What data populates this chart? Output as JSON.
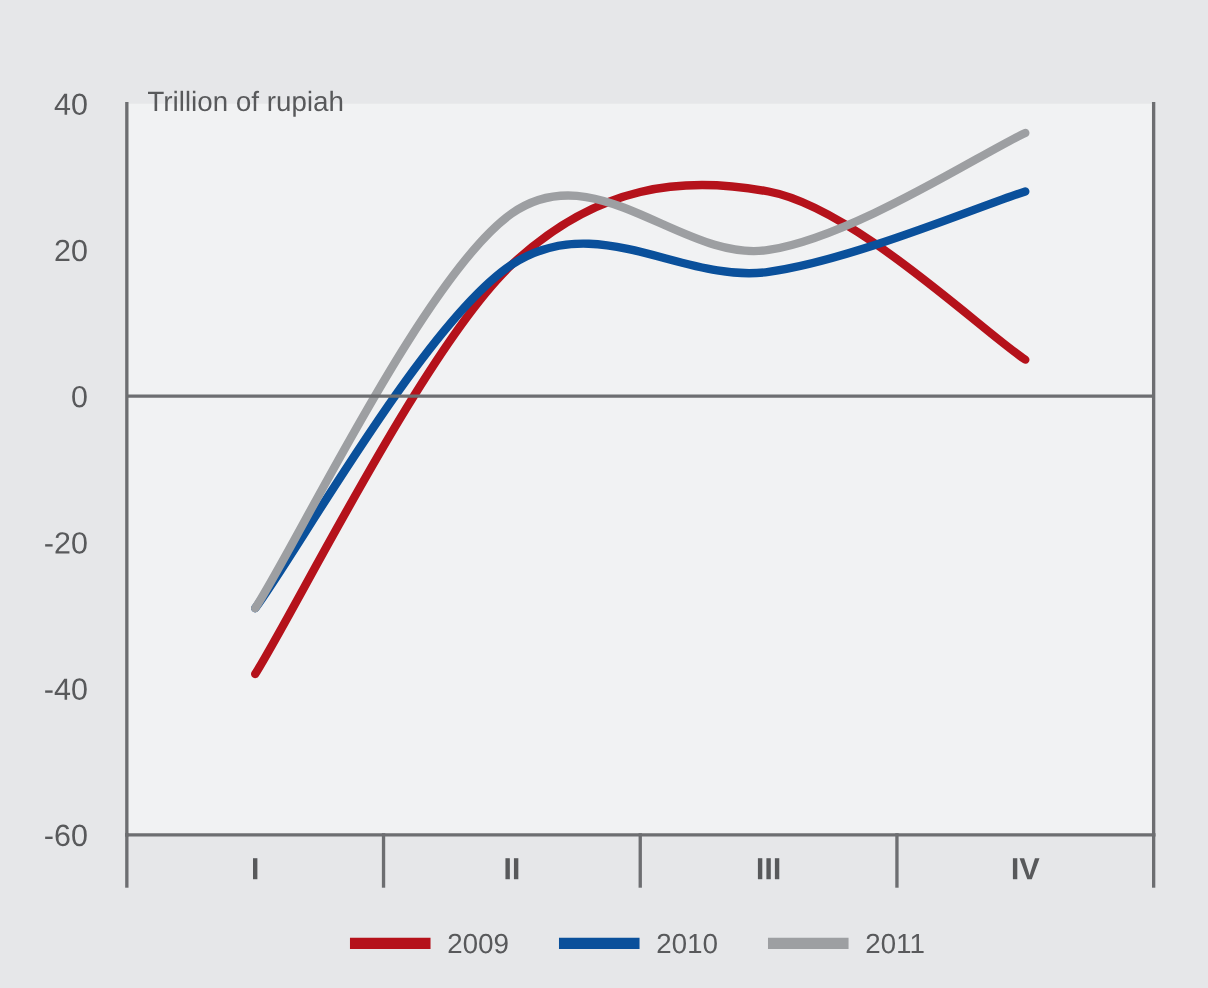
{
  "chart_data": {
    "type": "line",
    "ylabel": "Trillion of rupiah",
    "categories": [
      "I",
      "II",
      "III",
      "IV"
    ],
    "series": [
      {
        "name": "2009",
        "color": "#b5121b",
        "values": [
          -38,
          18,
          28,
          5
        ]
      },
      {
        "name": "2010",
        "color": "#0a509b",
        "values": [
          -29,
          18,
          17,
          28
        ]
      },
      {
        "name": "2011",
        "color": "#9d9fa2",
        "values": [
          -29,
          25,
          20,
          36
        ]
      }
    ],
    "ylim": [
      -60,
      40
    ],
    "yticks": [
      -60,
      -40,
      -20,
      0,
      20,
      40
    ],
    "ref_lines": [
      {
        "axis": "y",
        "value": 0,
        "color": "#6d6e71"
      }
    ],
    "grid": false,
    "legend": "bottom",
    "marker": "none",
    "line_style": "solid"
  }
}
